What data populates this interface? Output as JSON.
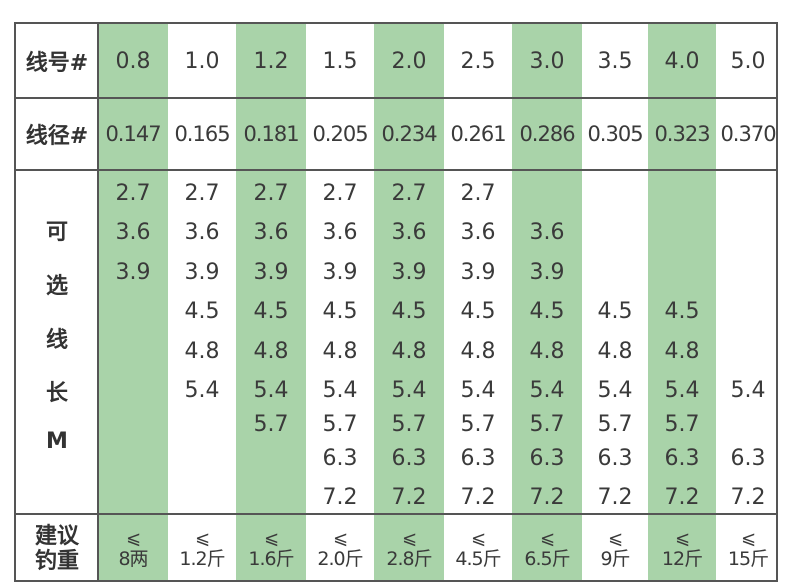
{
  "colors": {
    "accent": "#a9d3a9",
    "border": "#555555"
  },
  "header": {
    "line_no_label": "线号#",
    "diameter_label": "线径#"
  },
  "line_numbers": [
    "0.8",
    "1.0",
    "1.2",
    "1.5",
    "2.0",
    "2.5",
    "3.0",
    "3.5",
    "4.0",
    "5.0"
  ],
  "diameters": [
    "0.147",
    "0.165",
    "0.181",
    "0.205",
    "0.234",
    "0.261",
    "0.286",
    "0.305",
    "0.323",
    "0.370"
  ],
  "length_label": [
    "可",
    "选",
    "线",
    "长",
    "M"
  ],
  "length_rows": [
    [
      "2.7",
      "2.7",
      "2.7",
      "2.7",
      "2.7",
      "2.7",
      "",
      "",
      "",
      ""
    ],
    [
      "3.6",
      "3.6",
      "3.6",
      "3.6",
      "3.6",
      "3.6",
      "3.6",
      "",
      "",
      ""
    ],
    [
      "3.9",
      "3.9",
      "3.9",
      "3.9",
      "3.9",
      "3.9",
      "3.9",
      "",
      "",
      ""
    ],
    [
      "",
      "4.5",
      "4.5",
      "4.5",
      "4.5",
      "4.5",
      "4.5",
      "4.5",
      "4.5",
      ""
    ],
    [
      "",
      "4.8",
      "4.8",
      "4.8",
      "4.8",
      "4.8",
      "4.8",
      "4.8",
      "4.8",
      ""
    ],
    [
      "",
      "5.4",
      "5.4",
      "5.4",
      "5.4",
      "5.4",
      "5.4",
      "5.4",
      "5.4",
      "5.4"
    ],
    [
      "",
      "",
      "5.7",
      "5.7",
      "5.7",
      "5.7",
      "5.7",
      "5.7",
      "5.7",
      ""
    ],
    [
      "",
      "",
      "",
      "6.3",
      "6.3",
      "6.3",
      "6.3",
      "6.3",
      "6.3",
      "6.3"
    ],
    [
      "",
      "",
      "",
      "7.2",
      "7.2",
      "7.2",
      "7.2",
      "7.2",
      "7.2",
      "7.2"
    ]
  ],
  "weight_label": [
    "建议",
    "钓重"
  ],
  "weight_symbol": "⩽",
  "weights": [
    "8两",
    "1.2斤",
    "1.6斤",
    "2.0斤",
    "2.8斤",
    "4.5斤",
    "6.5斤",
    "9斤",
    "12斤",
    "15斤"
  ]
}
